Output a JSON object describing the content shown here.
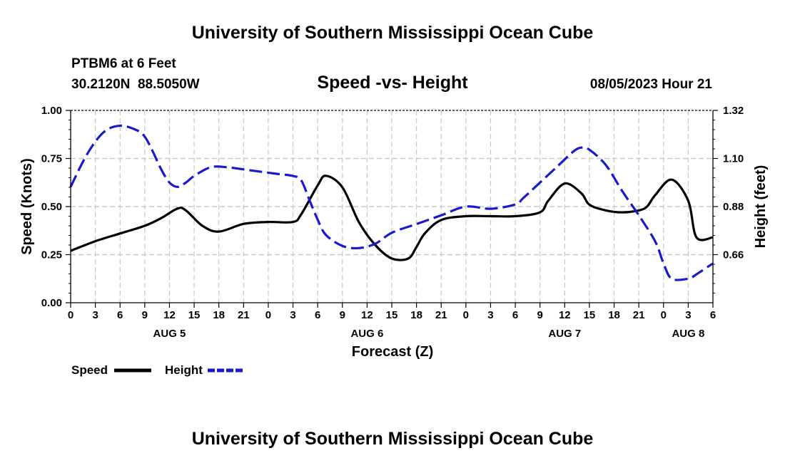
{
  "header": {
    "title_top": "University of Southern Mississippi Ocean Cube",
    "station": "PTBM6 at 6 Feet",
    "coords": "30.2120N  88.5050W",
    "chart_title": "Speed -vs- Height",
    "datetime": "08/05/2023 Hour 21",
    "title_bottom": "University of Southern Mississippi Ocean Cube"
  },
  "legend": {
    "speed_label": "Speed",
    "height_label": "Height"
  },
  "colors": {
    "speed": "#000000",
    "height": "#1a1acc"
  },
  "chart_data": {
    "type": "line",
    "title": "Speed -vs- Height",
    "xlabel": "Forecast (Z)",
    "ylabel": "Speed (Knots)",
    "y2label": "Height (feet)",
    "xlim": [
      0,
      78
    ],
    "ylim": [
      0,
      1.0
    ],
    "y2lim": [
      0.44,
      1.32
    ],
    "yticks": [
      "0.00",
      "0.25",
      "0.50",
      "0.75",
      "1.00"
    ],
    "y2ticks": [
      "0.66",
      "0.88",
      "1.10",
      "1.32"
    ],
    "y2tick_values": [
      0.66,
      0.88,
      1.1,
      1.32
    ],
    "xtick_labels": [
      "0",
      "3",
      "6",
      "9",
      "12",
      "15",
      "18",
      "21",
      "0",
      "3",
      "6",
      "9",
      "12",
      "15",
      "18",
      "21",
      "0",
      "3",
      "6",
      "9",
      "12",
      "15",
      "18",
      "21",
      "0",
      "3",
      "6"
    ],
    "date_labels": [
      {
        "label": "AUG 5",
        "hour": 12
      },
      {
        "label": "AUG 6",
        "hour": 36
      },
      {
        "label": "AUG 7",
        "hour": 60
      },
      {
        "label": "AUG 8",
        "hour": 75
      }
    ],
    "series": [
      {
        "name": "Speed",
        "axis": "left",
        "style": "solid",
        "x": [
          0,
          3,
          6,
          9,
          11,
          13,
          14,
          16,
          18,
          21,
          24,
          27,
          28,
          30,
          31,
          33,
          35,
          37,
          39,
          41,
          42,
          43,
          45,
          48,
          51,
          54,
          57,
          58,
          60,
          62,
          63,
          65,
          67,
          69,
          70,
          71,
          73,
          75,
          76,
          78
        ],
        "values": [
          0.27,
          0.32,
          0.36,
          0.4,
          0.44,
          0.49,
          0.48,
          0.4,
          0.37,
          0.41,
          0.42,
          0.42,
          0.46,
          0.61,
          0.66,
          0.6,
          0.42,
          0.3,
          0.23,
          0.23,
          0.29,
          0.36,
          0.43,
          0.45,
          0.45,
          0.45,
          0.47,
          0.53,
          0.62,
          0.57,
          0.51,
          0.48,
          0.47,
          0.48,
          0.5,
          0.56,
          0.64,
          0.53,
          0.34,
          0.34
        ]
      },
      {
        "name": "Height",
        "axis": "right",
        "style": "dashed",
        "x": [
          0,
          2,
          4,
          6,
          8,
          9,
          10,
          11,
          12,
          13,
          14,
          15,
          17,
          19,
          21,
          23,
          25,
          27,
          28,
          29,
          30,
          31,
          33,
          35,
          37,
          39,
          42,
          45,
          48,
          51,
          54,
          55,
          57,
          59,
          61,
          62,
          63,
          65,
          67,
          69,
          71,
          72,
          73,
          75,
          76,
          78
        ],
        "values": [
          0.97,
          1.12,
          1.22,
          1.25,
          1.23,
          1.2,
          1.13,
          1.05,
          0.99,
          0.97,
          0.99,
          1.02,
          1.06,
          1.06,
          1.05,
          1.04,
          1.03,
          1.02,
          1.0,
          0.91,
          0.82,
          0.75,
          0.7,
          0.69,
          0.71,
          0.76,
          0.8,
          0.84,
          0.88,
          0.87,
          0.89,
          0.92,
          0.99,
          1.06,
          1.13,
          1.15,
          1.14,
          1.07,
          0.95,
          0.84,
          0.72,
          0.62,
          0.55,
          0.55,
          0.57,
          0.62
        ]
      }
    ]
  }
}
